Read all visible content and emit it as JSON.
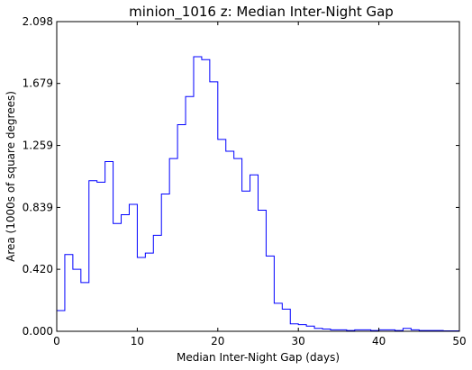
{
  "chart_data": {
    "type": "histogram-step",
    "title": "minion_1016  z: Median Inter-Night Gap",
    "xlabel": "Median Inter-Night Gap (days)",
    "ylabel": "Area (1000s of square degrees)",
    "xlim": [
      0,
      50
    ],
    "ylim": [
      0,
      2.098
    ],
    "x_ticks": [
      "0",
      "10",
      "20",
      "30",
      "40",
      "50"
    ],
    "y_ticks": [
      "0.000",
      "0.420",
      "0.839",
      "1.259",
      "1.679",
      "2.098"
    ],
    "y_tick_values": [
      0,
      0.42,
      0.839,
      1.259,
      1.679,
      2.098
    ],
    "line_color": "#0000ff",
    "bin_edges": [
      0,
      1,
      2,
      3,
      4,
      5,
      6,
      7,
      8,
      9,
      10,
      11,
      12,
      13,
      14,
      15,
      16,
      17,
      18,
      19,
      20,
      21,
      22,
      23,
      24,
      25,
      26,
      27,
      28,
      29,
      30,
      31,
      32,
      33,
      34,
      35,
      36,
      37,
      38,
      39,
      40,
      41,
      42,
      43,
      44,
      45,
      46,
      47,
      48,
      49,
      50
    ],
    "values": [
      0.14,
      0.52,
      0.42,
      0.33,
      1.02,
      1.01,
      1.15,
      0.73,
      0.79,
      0.86,
      0.5,
      0.53,
      0.65,
      0.93,
      1.17,
      1.4,
      1.59,
      1.86,
      1.84,
      1.69,
      1.3,
      1.22,
      1.17,
      0.95,
      1.06,
      0.82,
      0.51,
      0.19,
      0.15,
      0.05,
      0.045,
      0.035,
      0.02,
      0.015,
      0.01,
      0.01,
      0.005,
      0.01,
      0.01,
      0.005,
      0.01,
      0.01,
      0.005,
      0.02,
      0.01,
      0.005,
      0.005,
      0.005,
      0.003,
      0.003
    ]
  }
}
